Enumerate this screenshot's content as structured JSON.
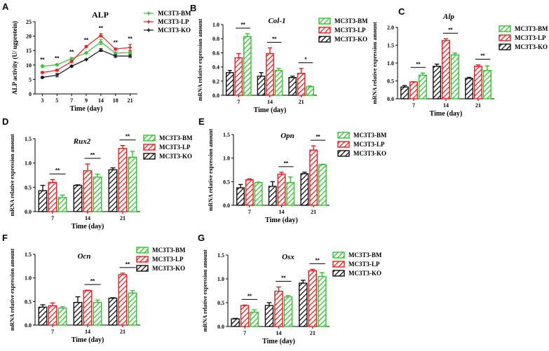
{
  "colors": {
    "MC3T3-BM": "#2fc42f",
    "MC3T3-LP": "#f01c1c",
    "MC3T3-KO": "#111111"
  },
  "legend": [
    "MC3T3-BM",
    "MC3T3-LP",
    "MC3T3-KO"
  ],
  "chart_data": [
    {
      "panel": "A",
      "type": "line",
      "title": "ALP",
      "xlabel": "Time (day)",
      "ylabel": "ALP activity (U/ ugprotein)",
      "categories": [
        "3",
        "5",
        "7",
        "9",
        "14",
        "18",
        "21"
      ],
      "ylim": [
        0,
        25
      ],
      "yticks": [
        0,
        5,
        10,
        15,
        20,
        25
      ],
      "series": [
        {
          "name": "MC3T3-BM",
          "values": [
            9.6,
            10.1,
            12.2,
            14.2,
            18.0,
            14.1,
            14.3
          ],
          "errors": [
            0.4,
            0.3,
            0.4,
            0.3,
            0.9,
            0.4,
            0.4
          ]
        },
        {
          "name": "MC3T3-LP",
          "values": [
            7.4,
            8.2,
            11.2,
            16.4,
            20.3,
            15.5,
            16.1
          ],
          "errors": [
            0.3,
            0.3,
            0.3,
            0.3,
            0.6,
            0.4,
            1.1
          ]
        },
        {
          "name": "MC3T3-KO",
          "values": [
            5.7,
            6.5,
            9.6,
            11.9,
            15.2,
            13.1,
            13.1
          ],
          "errors": [
            0.3,
            0.6,
            0.3,
            0.2,
            0.5,
            0.5,
            0.5
          ]
        }
      ],
      "significance": [
        "**",
        "**",
        "**",
        "**",
        "**",
        "**",
        "**"
      ]
    },
    {
      "panel": "B",
      "type": "bar",
      "title": "Col-1",
      "xlabel": "Time (day)",
      "ylabel": "mRNA relative expression amount",
      "categories": [
        "7",
        "14",
        "21"
      ],
      "ylim": [
        0,
        1.0
      ],
      "yticks": [
        "0.0",
        "0.2",
        "0.4",
        "0.6",
        "0.8",
        "1.0"
      ],
      "series": [
        {
          "name": "MC3T3-KO",
          "values": [
            0.32,
            0.27,
            0.25
          ],
          "errors": [
            0.03,
            0.05,
            0.02
          ]
        },
        {
          "name": "MC3T3-LP",
          "values": [
            0.53,
            0.59,
            0.31
          ],
          "errors": [
            0.06,
            0.08,
            0.07
          ]
        },
        {
          "name": "MC3T3-BM",
          "values": [
            0.83,
            0.35,
            0.12
          ],
          "errors": [
            0.04,
            0.03,
            0.01
          ]
        }
      ],
      "significance": [
        "**",
        "**",
        "*"
      ]
    },
    {
      "panel": "C",
      "type": "bar",
      "title": "Alp",
      "xlabel": "Time (day)",
      "ylabel": "mRNA relative expression amount",
      "categories": [
        "7",
        "14",
        "21"
      ],
      "ylim": [
        0,
        2.0
      ],
      "yticks": [
        "0.0",
        "0.5",
        "1.0",
        "1.5",
        "2.0"
      ],
      "series": [
        {
          "name": "MC3T3-KO",
          "values": [
            0.33,
            0.91,
            0.57
          ],
          "errors": [
            0.04,
            0.06,
            0.03
          ]
        },
        {
          "name": "MC3T3-LP",
          "values": [
            0.47,
            1.63,
            0.91
          ],
          "errors": [
            0.01,
            0.05,
            0.04
          ]
        },
        {
          "name": "MC3T3-BM",
          "values": [
            0.66,
            1.23,
            0.79
          ],
          "errors": [
            0.06,
            0.05,
            0.13
          ]
        }
      ],
      "significance": [
        "**",
        "**",
        "**"
      ]
    },
    {
      "panel": "D",
      "type": "bar",
      "title": "Rux2",
      "xlabel": "Time (day)",
      "ylabel": "mRNA relative expression amount",
      "categories": [
        "7",
        "14",
        "21"
      ],
      "ylim": [
        0,
        1.5
      ],
      "yticks": [
        "0.0",
        "0.5",
        "1.0",
        "1.5"
      ],
      "series": [
        {
          "name": "MC3T3-KO",
          "values": [
            0.43,
            0.54,
            0.86
          ],
          "errors": [
            0.11,
            0.01,
            0.04
          ]
        },
        {
          "name": "MC3T3-LP",
          "values": [
            0.6,
            0.84,
            1.3
          ],
          "errors": [
            0.06,
            0.14,
            0.06
          ]
        },
        {
          "name": "MC3T3-BM",
          "values": [
            0.29,
            0.71,
            1.12
          ],
          "errors": [
            0.05,
            0.06,
            0.12
          ]
        }
      ],
      "significance": [
        "**",
        "**",
        "**"
      ]
    },
    {
      "panel": "E",
      "type": "bar",
      "title": "Opn",
      "xlabel": "Time (day)",
      "ylabel": "mRNA relative expression amount",
      "categories": [
        "7",
        "14",
        "21"
      ],
      "ylim": [
        0,
        1.5
      ],
      "yticks": [
        "0.0",
        "0.5",
        "1.0",
        "1.5"
      ],
      "series": [
        {
          "name": "MC3T3-KO",
          "values": [
            0.37,
            0.4,
            0.67
          ],
          "errors": [
            0.07,
            0.1,
            0.03
          ]
        },
        {
          "name": "MC3T3-LP",
          "values": [
            0.54,
            0.66,
            1.17
          ],
          "errors": [
            0.02,
            0.04,
            0.09
          ]
        },
        {
          "name": "MC3T3-BM",
          "values": [
            0.48,
            0.48,
            0.86
          ],
          "errors": [
            0.01,
            0.12,
            0.01
          ]
        }
      ],
      "significance": [
        "",
        "**",
        "**"
      ]
    },
    {
      "panel": "F",
      "type": "bar",
      "title": "Ocn",
      "xlabel": "Time (day)",
      "ylabel": "mRNA relative expression amount",
      "categories": [
        "7",
        "14",
        "21"
      ],
      "ylim": [
        0,
        1.5
      ],
      "yticks": [
        "0.0",
        "0.5",
        "1.0",
        "1.5"
      ],
      "series": [
        {
          "name": "MC3T3-KO",
          "values": [
            0.38,
            0.48,
            0.57
          ],
          "errors": [
            0.05,
            0.12,
            0.01
          ]
        },
        {
          "name": "MC3T3-LP",
          "values": [
            0.41,
            0.73,
            1.07
          ],
          "errors": [
            0.06,
            0.01,
            0.03
          ]
        },
        {
          "name": "MC3T3-BM",
          "values": [
            0.36,
            0.48,
            0.68
          ],
          "errors": [
            0.03,
            0.05,
            0.05
          ]
        }
      ],
      "significance": [
        "",
        "**",
        "**"
      ]
    },
    {
      "panel": "G",
      "type": "bar",
      "title": "Osx",
      "xlabel": "Time (day)",
      "ylabel": "mRNA relative expression amount",
      "categories": [
        "7",
        "14",
        "21"
      ],
      "ylim": [
        0,
        1.5
      ],
      "yticks": [
        "0.0",
        "0.5",
        "1.0",
        "1.5"
      ],
      "series": [
        {
          "name": "MC3T3-KO",
          "values": [
            0.16,
            0.44,
            0.91
          ],
          "errors": [
            0.01,
            0.06,
            0.06
          ]
        },
        {
          "name": "MC3T3-LP",
          "values": [
            0.44,
            0.74,
            1.17
          ],
          "errors": [
            0.01,
            0.09,
            0.03
          ]
        },
        {
          "name": "MC3T3-BM",
          "values": [
            0.3,
            0.62,
            1.05
          ],
          "errors": [
            0.05,
            0.03,
            0.08
          ]
        }
      ],
      "significance": [
        "**",
        "**",
        "**"
      ]
    }
  ]
}
